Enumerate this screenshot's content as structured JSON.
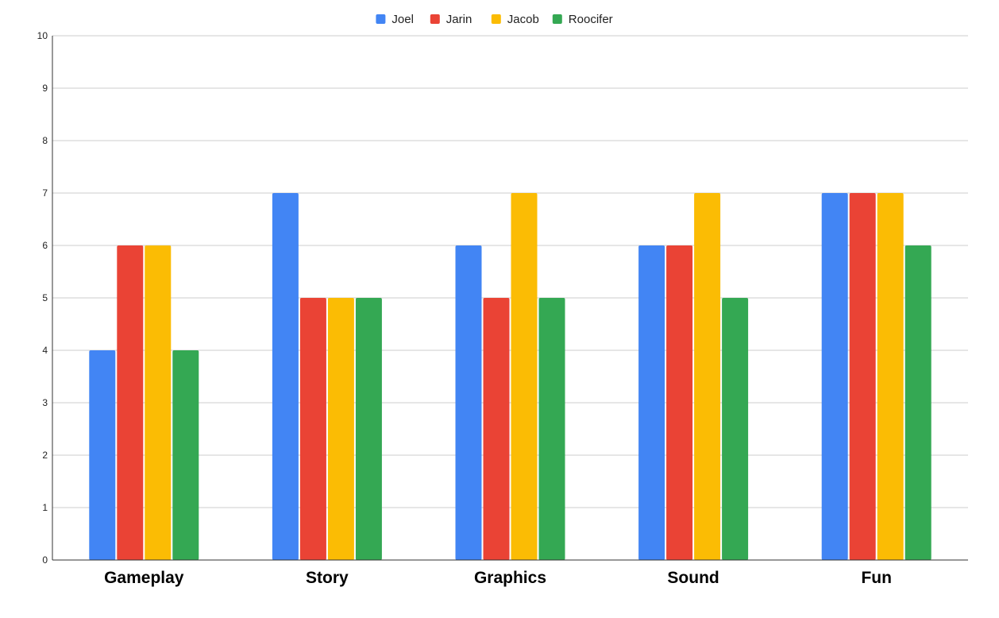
{
  "chart_data": {
    "type": "bar",
    "categories": [
      "Gameplay",
      "Story",
      "Graphics",
      "Sound",
      "Fun"
    ],
    "series": [
      {
        "name": "Joel",
        "color": "#4285F4",
        "values": [
          4,
          7,
          6,
          6,
          7
        ]
      },
      {
        "name": "Jarin",
        "color": "#EA4335",
        "values": [
          6,
          5,
          5,
          6,
          7
        ]
      },
      {
        "name": "Jacob",
        "color": "#FBBC04",
        "values": [
          6,
          5,
          7,
          7,
          7
        ]
      },
      {
        "name": "Roocifer",
        "color": "#34A853",
        "values": [
          4,
          5,
          5,
          5,
          6
        ]
      }
    ],
    "title": "",
    "xlabel": "",
    "ylabel": "",
    "ylim": [
      0,
      10
    ],
    "yticks": [
      0,
      1,
      2,
      3,
      4,
      5,
      6,
      7,
      8,
      9,
      10
    ],
    "grid": true,
    "legend_position": "top-center"
  }
}
